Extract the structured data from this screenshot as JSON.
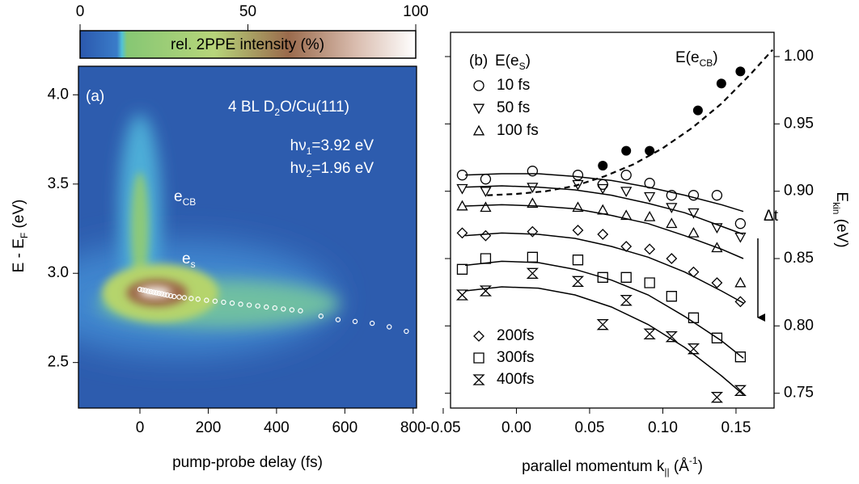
{
  "chart_data": [
    {
      "type": "heatmap",
      "panel_label": "(a)",
      "annotations": [
        [
          {
            "t": "4 BL D"
          },
          {
            "sub": "2"
          },
          {
            "t": "O/Cu(111)"
          }
        ],
        [
          {
            "t": "hν"
          },
          {
            "sub": "1"
          },
          {
            "t": "=3.92 eV"
          }
        ],
        [
          {
            "t": "hν"
          },
          {
            "sub": "2"
          },
          {
            "t": "=1.96 eV"
          }
        ],
        [
          {
            "t": "e"
          },
          {
            "sub": "CB"
          }
        ],
        [
          {
            "t": "e"
          },
          {
            "sub": "s"
          }
        ]
      ],
      "xlabel": [
        {
          "t": "pump-probe delay (fs)"
        }
      ],
      "ylabel": [
        {
          "t": "E - E"
        },
        {
          "sub": "F"
        },
        {
          "t": " (eV)"
        }
      ],
      "xlim": [
        -180,
        810
      ],
      "ylim": [
        2.245,
        4.16
      ],
      "xticks": [
        0,
        200,
        400,
        600,
        800
      ],
      "yticks": [
        2.5,
        {
          "value": 3.0,
          "label": "3.0"
        },
        3.5,
        {
          "value": 4.0,
          "label": "4.0"
        }
      ],
      "colorbar": {
        "label": "rel. 2PPE intensity (%)",
        "lim": [
          0,
          100
        ],
        "ticks": [
          0,
          50,
          100
        ]
      },
      "peak": {
        "color": "#ffffff",
        "x": [
          0,
          8,
          16,
          24,
          32,
          40,
          48,
          56,
          64,
          72,
          80,
          90,
          100,
          115,
          130,
          150,
          170,
          195,
          220,
          245,
          270,
          295,
          320,
          345,
          370,
          395,
          420,
          445,
          470,
          530,
          580,
          630,
          680,
          730,
          780
        ],
        "y": [
          2.91,
          2.907,
          2.904,
          2.9,
          2.897,
          2.894,
          2.891,
          2.888,
          2.885,
          2.881,
          2.878,
          2.874,
          2.87,
          2.867,
          2.863,
          2.859,
          2.855,
          2.849,
          2.844,
          2.838,
          2.833,
          2.827,
          2.822,
          2.817,
          2.811,
          2.806,
          2.8,
          2.795,
          2.79,
          2.76,
          2.74,
          2.73,
          2.72,
          2.7,
          2.675
        ]
      }
    },
    {
      "type": "scatter",
      "panel_label": "(b)",
      "legend_title": [
        {
          "t": "E(e"
        },
        {
          "sub": "S"
        },
        {
          "t": ")"
        }
      ],
      "xlabel": [
        {
          "t": "parallel momentum  k"
        },
        {
          "sub": "||"
        },
        {
          "t": " (Å"
        },
        {
          "sup": "-1"
        },
        {
          "t": ")"
        }
      ],
      "y2label": [
        {
          "t": "E"
        },
        {
          "sub": "kin"
        },
        {
          "t": " (eV)"
        }
      ],
      "delta_label": "Δt",
      "xlim": [
        -0.045,
        0.176
      ],
      "y2lim": [
        0.739,
        1.018
      ],
      "xticks": [
        -0.05,
        {
          "value": 0.0,
          "label": "0.00"
        },
        0.05,
        {
          "value": 0.1,
          "label": "0.10"
        },
        0.15
      ],
      "y2ticks": [
        0.75,
        {
          "value": 0.8,
          "label": "0.80"
        },
        0.85,
        {
          "value": 0.9,
          "label": "0.90"
        },
        0.95,
        {
          "value": 1.0,
          "label": "1.00"
        }
      ],
      "x": [
        -0.037,
        -0.021,
        0.011,
        0.042,
        0.059,
        0.075,
        0.091,
        0.106,
        0.121,
        0.137,
        0.153
      ],
      "series": [
        {
          "name": "10 fs",
          "marker": "circle",
          "color": "#000000",
          "values": [
            0.912,
            0.909,
            0.915,
            0.912,
            0.905,
            0.912,
            0.906,
            0.897,
            0.897,
            0.897,
            0.876
          ]
        },
        {
          "name": "50 fs",
          "marker": "triangle-down",
          "color": "#000000",
          "values": [
            0.902,
            0.9,
            0.903,
            0.905,
            0.902,
            0.9,
            0.896,
            0.888,
            0.884,
            0.873,
            0.866
          ]
        },
        {
          "name": "100 fs",
          "marker": "triangle-up",
          "color": "#000000",
          "values": [
            0.889,
            0.888,
            0.891,
            0.888,
            0.886,
            0.882,
            0.881,
            0.876,
            0.869,
            0.858,
            0.832
          ]
        },
        {
          "name": "200fs",
          "marker": "diamond",
          "color": "#000000",
          "values": [
            0.869,
            0.867,
            0.87,
            0.871,
            0.868,
            0.859,
            0.857,
            0.85,
            0.84,
            0.832,
            0.818
          ]
        },
        {
          "name": "300fs",
          "marker": "square",
          "color": "#000000",
          "values": [
            0.842,
            0.85,
            0.851,
            0.849,
            0.836,
            0.836,
            0.832,
            0.822,
            0.806,
            0.791,
            0.777
          ]
        },
        {
          "name": "400fs",
          "marker": "hourglass",
          "color": "#000000",
          "values": [
            0.823,
            0.826,
            0.839,
            0.833,
            0.801,
            0.819,
            0.794,
            0.792,
            0.783,
            0.747,
            0.752
          ]
        }
      ],
      "fit_x": [
        -0.035,
        -0.01,
        0.015,
        0.04,
        0.065,
        0.09,
        0.115,
        0.14,
        0.155
      ],
      "fits": [
        [
          0.912,
          0.913,
          0.913,
          0.911,
          0.908,
          0.903,
          0.897,
          0.89,
          0.885
        ],
        [
          0.903,
          0.904,
          0.903,
          0.901,
          0.897,
          0.891,
          0.884,
          0.874,
          0.868
        ],
        [
          0.889,
          0.89,
          0.889,
          0.887,
          0.882,
          0.876,
          0.867,
          0.857,
          0.85
        ],
        [
          0.867,
          0.869,
          0.868,
          0.865,
          0.859,
          0.851,
          0.84,
          0.826,
          0.817
        ],
        [
          0.845,
          0.848,
          0.847,
          0.842,
          0.834,
          0.823,
          0.807,
          0.789,
          0.776
        ],
        [
          0.826,
          0.829,
          0.828,
          0.823,
          0.814,
          0.801,
          0.784,
          0.763,
          0.749
        ]
      ],
      "cb": {
        "label": [
          {
            "t": "E(e"
          },
          {
            "sub": "CB"
          },
          {
            "t": ")"
          }
        ],
        "color": "#000000",
        "x": [
          0.059,
          0.075,
          0.091,
          0.124,
          0.14,
          0.153
        ],
        "values": [
          0.919,
          0.93,
          0.93,
          0.96,
          0.98,
          0.989
        ],
        "fit_x": [
          -0.02,
          0.0,
          0.02,
          0.04,
          0.06,
          0.08,
          0.1,
          0.12,
          0.14,
          0.16,
          0.175
        ],
        "fit_values": [
          0.897,
          0.898,
          0.9,
          0.904,
          0.911,
          0.92,
          0.932,
          0.947,
          0.965,
          0.987,
          1.005
        ]
      }
    }
  ]
}
